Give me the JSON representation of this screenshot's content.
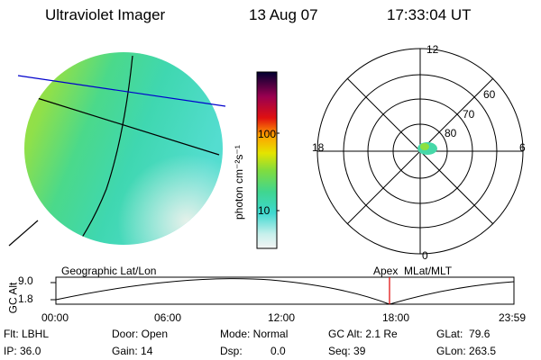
{
  "header": {
    "instrument": "Ultraviolet Imager",
    "date": "13 Aug 07",
    "time": "17:33:04 UT"
  },
  "colorbar": {
    "unit_label": "photon cm⁻²s⁻¹",
    "ticks": [
      "100",
      "10"
    ]
  },
  "polar": {
    "mlt_labels": [
      "12",
      "18",
      "6",
      "0"
    ],
    "lat_labels": [
      "60",
      "70",
      "80"
    ]
  },
  "image_panel": {
    "left_label": "Geographic Lat/Lon",
    "right_label": "Apex  MLat/MLT"
  },
  "altitude_plot": {
    "axis_title": "GC Alt",
    "y_ticks": [
      "9.0",
      "1.8"
    ],
    "x_ticks": [
      "00:00",
      "06:00",
      "12:00",
      "18:00",
      "23:59"
    ],
    "marker_time": "17:33"
  },
  "info": {
    "filter": "Flt: LBHL",
    "ip": "IP: 36.0",
    "door": "Door: Open",
    "gain": "Gain: 14",
    "mode": "Mode: Normal",
    "dsp_label": "Dsp:",
    "dsp_value": "0.0",
    "gc_alt": "GC Alt: 2.1 Re",
    "seq": "Seq: 39",
    "glat": "GLat:  79.6",
    "glon": "GLon: 263.5"
  },
  "colors": {
    "marker": "#e00000",
    "geo_line": "#0000cc"
  }
}
